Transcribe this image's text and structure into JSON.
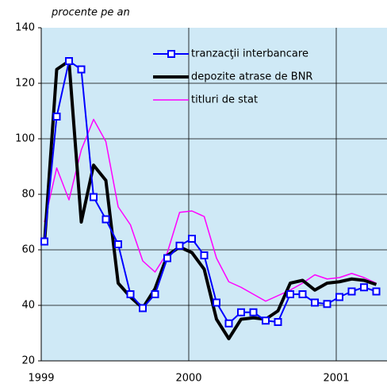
{
  "chart_data": {
    "type": "line",
    "ylabel": "procente pe an",
    "categories": [
      "1999",
      null,
      null,
      null,
      null,
      null,
      null,
      null,
      null,
      null,
      null,
      null,
      "2000",
      null,
      null,
      null,
      null,
      null,
      null,
      null,
      null,
      null,
      null,
      null,
      "2001",
      null,
      null,
      null
    ],
    "series": [
      {
        "name": "tranzacţii interbancare",
        "color": "#0000ff",
        "marker": "square",
        "values": [
          63,
          108,
          128,
          125,
          79,
          71,
          62,
          44,
          39,
          44,
          57,
          61.5,
          64,
          58,
          41,
          33.5,
          37.5,
          37.5,
          34.5,
          34,
          44,
          44,
          41,
          40.5,
          43,
          45,
          46.5,
          45
        ]
      },
      {
        "name": "depozite atrase de BNR",
        "color": "#000000",
        "values": [
          62,
          125,
          128,
          70,
          90.5,
          85,
          48,
          43,
          39,
          46,
          58,
          61,
          59,
          53,
          35,
          28,
          35,
          35.5,
          35,
          38,
          48,
          49,
          45.5,
          48,
          48.5,
          49.5,
          49,
          47.5
        ]
      },
      {
        "name": "titluri de stat",
        "color": "#ff00ff",
        "values": [
          70,
          89.5,
          78,
          96,
          107,
          99,
          75.5,
          69,
          56,
          52,
          59,
          73.5,
          74,
          72,
          57,
          48.5,
          46.5,
          44,
          41.5,
          43.5,
          45.5,
          48,
          51,
          49.5,
          50,
          51.5,
          50,
          48
        ]
      }
    ],
    "ylim": [
      20,
      140
    ],
    "yticks": [
      20,
      40,
      60,
      80,
      100,
      120,
      140
    ],
    "grid": true,
    "legend": "upper right"
  }
}
